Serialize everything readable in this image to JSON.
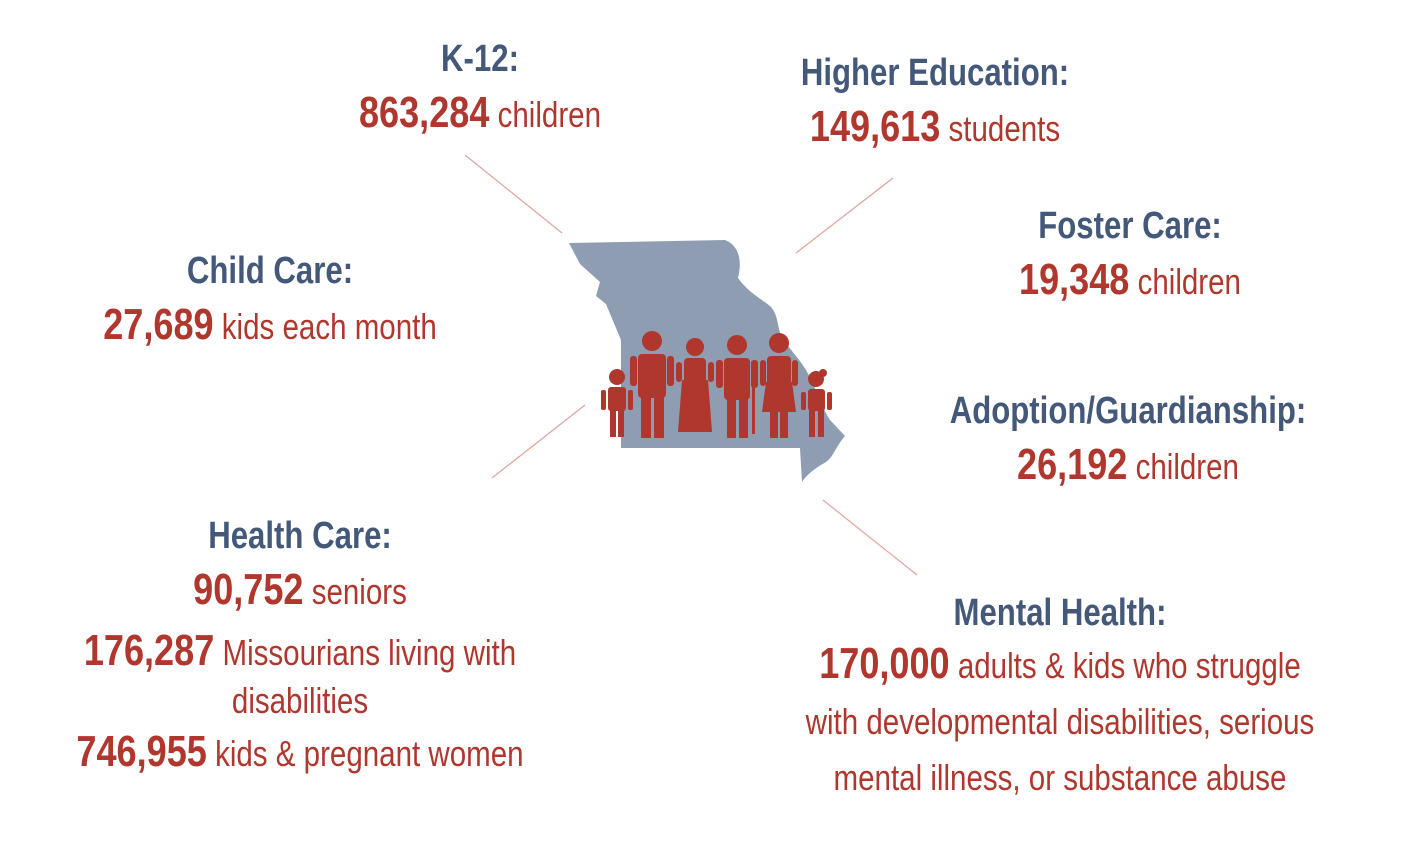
{
  "colors": {
    "heading": "#44597a",
    "figure": "#b0372e",
    "state": "#8e9db1",
    "connector": "#e0a49c"
  },
  "icons": {
    "state_map": "missouri-state-outline",
    "people": "family-silhouette-group"
  },
  "k12": {
    "heading": "K-12:",
    "number": "863,284",
    "text": "children"
  },
  "higher_ed": {
    "heading": "Higher Education:",
    "number": "149,613",
    "text": "students"
  },
  "child_care": {
    "heading": "Child Care:",
    "number": "27,689",
    "text": "kids each month"
  },
  "foster_care": {
    "heading": "Foster Care:",
    "number": "19,348",
    "text": "children"
  },
  "adoption": {
    "heading": "Adoption/Guardianship:",
    "number": "26,192",
    "text": "children"
  },
  "health_care": {
    "heading": "Health Care:",
    "seniors_number": "90,752",
    "seniors_text": "seniors",
    "disabilities_number": "176,287",
    "disabilities_text": "Missourians living with",
    "disabilities_text2": "disabilities",
    "kids_number": "746,955",
    "kids_text": "kids & pregnant women"
  },
  "mental_health": {
    "heading": "Mental Health:",
    "number": "170,000",
    "text": "adults & kids who struggle",
    "text2": "with developmental disabilities, serious",
    "text3": "mental illness, or substance abuse"
  }
}
